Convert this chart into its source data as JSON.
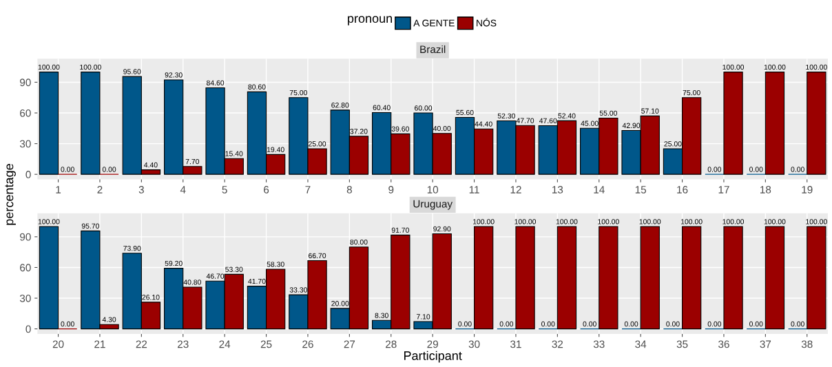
{
  "chart_data": [
    {
      "type": "bar",
      "title": "Brazil",
      "ylabel": "percentage",
      "legend_title": "pronoun",
      "legend": "top",
      "categories": [
        "1",
        "2",
        "3",
        "4",
        "5",
        "6",
        "7",
        "8",
        "9",
        "10",
        "11",
        "12",
        "13",
        "14",
        "15",
        "16",
        "17",
        "18",
        "19"
      ],
      "ylim": [
        -5,
        113
      ],
      "yticks": [
        0,
        30,
        60,
        90
      ],
      "grid": true,
      "series": [
        {
          "name": "A GENTE",
          "color": "#00578a",
          "values": [
            100,
            100,
            95.6,
            92.3,
            84.6,
            80.6,
            75,
            62.8,
            60.4,
            60,
            55.6,
            52.3,
            47.6,
            45,
            42.9,
            25,
            0,
            0,
            0
          ],
          "value_labels": [
            "100.00",
            "100.00",
            "95.60",
            "92.30",
            "84.60",
            "80.60",
            "75.00",
            "62.80",
            "60.40",
            "60.00",
            "55.60",
            "52.30",
            "47.60",
            "45.00",
            "42.90",
            "25.00",
            "0.00",
            "0.00",
            "0.00"
          ]
        },
        {
          "name": "NÓS",
          "color": "#9b0000",
          "values": [
            0,
            0,
            4.4,
            7.7,
            15.4,
            19.4,
            25,
            37.2,
            39.6,
            40,
            44.4,
            47.7,
            52.4,
            55,
            57.1,
            75,
            100,
            100,
            100
          ],
          "value_labels": [
            "0.00",
            "0.00",
            "4.40",
            "7.70",
            "15.40",
            "19.40",
            "25.00",
            "37.20",
            "39.60",
            "40.00",
            "44.40",
            "47.70",
            "52.40",
            "55.00",
            "57.10",
            "75.00",
            "100.00",
            "100.00",
            "100.00"
          ]
        }
      ]
    },
    {
      "type": "bar",
      "title": "Uruguay",
      "xlabel": "Participant",
      "categories": [
        "20",
        "21",
        "22",
        "23",
        "24",
        "25",
        "26",
        "27",
        "28",
        "29",
        "30",
        "31",
        "32",
        "33",
        "34",
        "35",
        "36",
        "37",
        "38"
      ],
      "ylim": [
        -5,
        113
      ],
      "yticks": [
        0,
        30,
        60,
        90
      ],
      "grid": true,
      "series": [
        {
          "color": "#00578a",
          "values": [
            100,
            95.7,
            73.9,
            59.2,
            46.7,
            41.7,
            33.3,
            20,
            8.3,
            7.1,
            0,
            0,
            0,
            0,
            0,
            0,
            0,
            0,
            0
          ],
          "value_labels": [
            "100.00",
            "95.70",
            "73.90",
            "59.20",
            "46.70",
            "41.70",
            "33.30",
            "20.00",
            "8.30",
            "7.10",
            "0.00",
            "0.00",
            "0.00",
            "0.00",
            "0.00",
            "0.00",
            "0.00",
            "0.00",
            "0.00"
          ]
        },
        {
          "color": "#9b0000",
          "values": [
            0,
            4.3,
            26.1,
            40.8,
            53.3,
            58.3,
            66.7,
            80,
            91.7,
            92.9,
            100,
            100,
            100,
            100,
            100,
            100,
            100,
            100,
            100
          ],
          "value_labels": [
            "0.00",
            "4.30",
            "26.10",
            "40.80",
            "53.30",
            "58.30",
            "66.70",
            "80.00",
            "91.70",
            "92.90",
            "100.00",
            "100.00",
            "100.00",
            "100.00",
            "100.00",
            "100.00",
            "100.00",
            "100.00",
            "100.00"
          ]
        }
      ]
    }
  ]
}
